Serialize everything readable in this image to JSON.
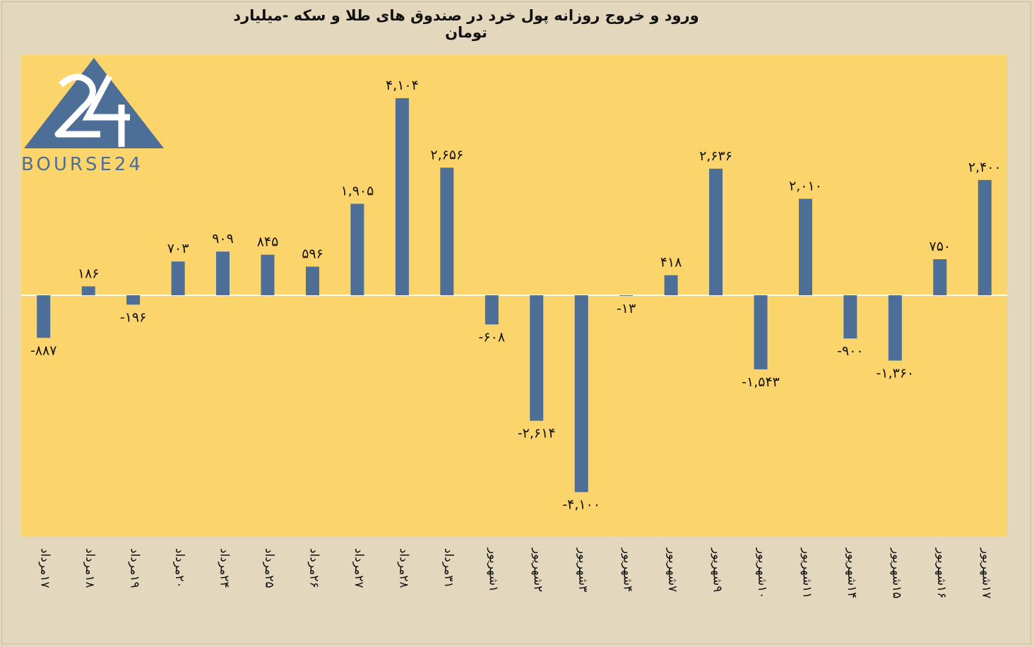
{
  "chart_data": {
    "type": "bar",
    "title": "ورود و خروج روزانه پول خرد در صندوق های طلا و سکه -میلیارد تومان",
    "categories": [
      "۱۷مرداد",
      "۱۸مرداد",
      "۱۹مرداد",
      "۲۰مرداد",
      "۲۴مرداد",
      "۲۵مرداد",
      "۲۶مرداد",
      "۲۷مرداد",
      "۲۸مرداد",
      "۳۱مرداد",
      "۱شهریور",
      "۲شهریور",
      "۳شهریور",
      "۴شهریور",
      "۷شهریور",
      "۹شهریور",
      "۱۰شهریور",
      "۱۱شهریور",
      "۱۴شهریور",
      "۱۵شهریور",
      "۱۶شهریور",
      "۱۷شهریور"
    ],
    "values": [
      -887,
      186,
      -196,
      703,
      909,
      845,
      596,
      1905,
      4104,
      2656,
      -608,
      -2614,
      -4100,
      -13,
      418,
      2636,
      -1543,
      2010,
      -900,
      -1360,
      750,
      2400
    ],
    "value_labels": [
      "-۸۸۷",
      "۱۸۶",
      "-۱۹۶",
      "۷۰۳",
      "۹۰۹",
      "۸۴۵",
      "۵۹۶",
      "۱,۹۰۵",
      "۴,۱۰۴",
      "۲,۶۵۶",
      "-۶۰۸",
      "-۲,۶۱۴",
      "-۴,۱۰۰",
      "-۱۳",
      "۴۱۸",
      "۲,۶۳۶",
      "-۱,۵۴۳",
      "۲,۰۱۰",
      "-۹۰۰",
      "-۱,۳۶۰",
      "۷۵۰",
      "۲,۴۰۰"
    ],
    "ylim": [
      -5000,
      5000
    ],
    "grid": false,
    "legend": "none",
    "colors": {
      "bar": "#4d6e97",
      "plot_bg": "#fcd46c",
      "page_bg": "#e3d7bd",
      "zero_line": "#ffffff"
    }
  },
  "logo": {
    "text": "BOURSE24",
    "mark": "24",
    "color": "#4d6e97"
  }
}
